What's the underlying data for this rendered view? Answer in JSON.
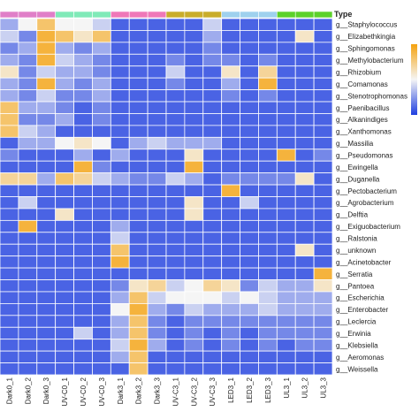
{
  "chart_data": {
    "type": "heatmap",
    "title": "",
    "annotation_label": "Type",
    "columns": [
      "Dark0_1",
      "Dark0_2",
      "Dark0_3",
      "UV-C0_1",
      "UV-C0_2",
      "UV-C0_3",
      "Dark3_1",
      "Dark3_2",
      "Dark3_3",
      "UV-C3_1",
      "UV-C3_2",
      "UV-C3_3",
      "LED3_1",
      "LED3_2",
      "LED3_3",
      "UL3_1",
      "UL3_2",
      "UL3_3"
    ],
    "column_groups": [
      "Dark0",
      "Dark0",
      "Dark0",
      "UV-C0",
      "UV-C0",
      "UV-C0",
      "Dark3",
      "Dark3",
      "Dark3",
      "UV-C3",
      "UV-C3",
      "UV-C3",
      "LED3",
      "LED3",
      "LED3",
      "UL3",
      "UL3",
      "UL3"
    ],
    "group_colors": {
      "Dark0": "#e07fc8",
      "UV-C0": "#80eab8",
      "Dark3": "#ef78b8",
      "UV-C3": "#c9ad2b",
      "LED3": "#9fd1ee",
      "UL3": "#5cd12b"
    },
    "rows": [
      "g__Staphylococcus",
      "g__Elizabethkingia",
      "g__Sphingomonas",
      "g__Methylobacterium",
      "g__Rhizobium",
      "g__Comamonas",
      "g__Stenotrophomonas",
      "g__Paenibacillus",
      "g__Alkanindiges",
      "g__Xanthomonas",
      "g__Massilia",
      "g__Pseudomonas",
      "g__Ewingella",
      "g__Duganella",
      "g__Pectobacterium",
      "g__Agrobacterium",
      "g__Delftia",
      "g__Exiguobacterium",
      "g__Ralstonia",
      "g__unknown",
      "g__Acinetobacter",
      "g__Serratia",
      "g__Pantoea",
      "g__Escherichia",
      "g__Enterobacter",
      "g__Leclercia",
      "g__Erwinia",
      "g__Klebsiella",
      "g__Aeromonas",
      "g__Weissella"
    ],
    "values": [
      [
        0.3,
        0.5,
        0.8,
        0.5,
        0.5,
        0.4,
        0.1,
        0.1,
        0.1,
        0.1,
        0.1,
        0.4,
        0.1,
        0.1,
        0.1,
        0.1,
        0.1,
        0.1
      ],
      [
        0.4,
        0.2,
        0.9,
        0.8,
        0.6,
        0.8,
        0.1,
        0.1,
        0.1,
        0.1,
        0.1,
        0.3,
        0.1,
        0.1,
        0.1,
        0.1,
        0.6,
        0.1
      ],
      [
        0.2,
        0.3,
        0.9,
        0.3,
        0.2,
        0.3,
        0.1,
        0.1,
        0.1,
        0.1,
        0.1,
        0.2,
        0.1,
        0.1,
        0.1,
        0.1,
        0.1,
        0.1
      ],
      [
        0.3,
        0.2,
        0.9,
        0.4,
        0.3,
        0.2,
        0.1,
        0.1,
        0.1,
        0.2,
        0.1,
        0.2,
        0.2,
        0.1,
        0.2,
        0.1,
        0.1,
        0.1
      ],
      [
        0.6,
        0.2,
        0.4,
        0.3,
        0.3,
        0.2,
        0.1,
        0.1,
        0.1,
        0.4,
        0.1,
        0.1,
        0.6,
        0.1,
        0.7,
        0.1,
        0.1,
        0.1
      ],
      [
        0.3,
        0.2,
        0.9,
        0.3,
        0.2,
        0.3,
        0.1,
        0.1,
        0.1,
        0.2,
        0.1,
        0.1,
        0.3,
        0.1,
        0.9,
        0.1,
        0.1,
        0.1
      ],
      [
        0.3,
        0.2,
        0.4,
        0.2,
        0.2,
        0.3,
        0.1,
        0.1,
        0.1,
        0.1,
        0.1,
        0.1,
        0.2,
        0.1,
        0.2,
        0.1,
        0.1,
        0.1
      ],
      [
        0.8,
        0.3,
        0.3,
        0.2,
        0.1,
        0.2,
        0.1,
        0.1,
        0.1,
        0.1,
        0.1,
        0.1,
        0.1,
        0.1,
        0.1,
        0.1,
        0.1,
        0.1
      ],
      [
        0.8,
        0.2,
        0.2,
        0.3,
        0.1,
        0.2,
        0.1,
        0.1,
        0.1,
        0.1,
        0.1,
        0.1,
        0.1,
        0.1,
        0.1,
        0.1,
        0.1,
        0.1
      ],
      [
        0.8,
        0.4,
        0.3,
        0.1,
        0.1,
        0.1,
        0.1,
        0.1,
        0.1,
        0.1,
        0.1,
        0.1,
        0.1,
        0.1,
        0.1,
        0.1,
        0.1,
        0.1
      ],
      [
        0.1,
        0.3,
        0.3,
        0.5,
        0.6,
        0.5,
        0.1,
        0.3,
        0.4,
        0.3,
        0.3,
        0.3,
        0.1,
        0.1,
        0.1,
        0.1,
        0.1,
        0.1
      ],
      [
        0.2,
        0.1,
        0.1,
        0.1,
        0.3,
        0.1,
        0.3,
        0.1,
        0.1,
        0.1,
        0.6,
        0.1,
        0.1,
        0.1,
        0.1,
        0.9,
        0.1,
        0.2
      ],
      [
        0.1,
        0.1,
        0.1,
        0.1,
        0.9,
        0.2,
        0.1,
        0.1,
        0.1,
        0.1,
        0.9,
        0.1,
        0.1,
        0.1,
        0.1,
        0.1,
        0.1,
        0.1
      ],
      [
        0.7,
        0.7,
        0.3,
        0.8,
        0.7,
        0.4,
        0.3,
        0.2,
        0.2,
        0.4,
        0.3,
        0.1,
        0.2,
        0.2,
        0.2,
        0.2,
        0.6,
        0.1
      ],
      [
        0.1,
        0.1,
        0.1,
        0.1,
        0.1,
        0.1,
        0.1,
        0.1,
        0.1,
        0.1,
        0.1,
        0.1,
        0.9,
        0.1,
        0.1,
        0.1,
        0.1,
        0.1
      ],
      [
        0.1,
        0.4,
        0.1,
        0.1,
        0.1,
        0.1,
        0.1,
        0.1,
        0.1,
        0.1,
        0.6,
        0.1,
        0.1,
        0.4,
        0.1,
        0.1,
        0.1,
        0.1
      ],
      [
        0.1,
        0.1,
        0.1,
        0.6,
        0.1,
        0.1,
        0.1,
        0.1,
        0.1,
        0.1,
        0.6,
        0.1,
        0.1,
        0.1,
        0.1,
        0.1,
        0.1,
        0.1
      ],
      [
        0.1,
        0.9,
        0.1,
        0.1,
        0.1,
        0.1,
        0.3,
        0.1,
        0.1,
        0.1,
        0.1,
        0.1,
        0.1,
        0.1,
        0.1,
        0.1,
        0.1,
        0.1
      ],
      [
        0.1,
        0.1,
        0.1,
        0.1,
        0.1,
        0.1,
        0.4,
        0.1,
        0.1,
        0.1,
        0.1,
        0.1,
        0.1,
        0.1,
        0.1,
        0.1,
        0.1,
        0.1
      ],
      [
        0.1,
        0.1,
        0.1,
        0.1,
        0.1,
        0.1,
        0.8,
        0.1,
        0.1,
        0.1,
        0.1,
        0.1,
        0.1,
        0.1,
        0.1,
        0.1,
        0.6,
        0.1
      ],
      [
        0.1,
        0.1,
        0.1,
        0.1,
        0.1,
        0.1,
        0.9,
        0.1,
        0.1,
        0.1,
        0.1,
        0.1,
        0.1,
        0.1,
        0.1,
        0.1,
        0.1,
        0.1
      ],
      [
        0.1,
        0.1,
        0.1,
        0.1,
        0.1,
        0.1,
        0.1,
        0.1,
        0.1,
        0.1,
        0.1,
        0.1,
        0.1,
        0.1,
        0.1,
        0.1,
        0.1,
        0.9
      ],
      [
        0.1,
        0.1,
        0.1,
        0.1,
        0.1,
        0.1,
        0.2,
        0.6,
        0.7,
        0.4,
        0.5,
        0.7,
        0.6,
        0.2,
        0.4,
        0.3,
        0.3,
        0.6
      ],
      [
        0.1,
        0.1,
        0.1,
        0.1,
        0.1,
        0.1,
        0.3,
        0.8,
        0.4,
        0.5,
        0.5,
        0.5,
        0.4,
        0.5,
        0.4,
        0.3,
        0.3,
        0.3
      ],
      [
        0.1,
        0.1,
        0.1,
        0.1,
        0.1,
        0.1,
        0.5,
        0.9,
        0.3,
        0.2,
        0.4,
        0.3,
        0.3,
        0.3,
        0.4,
        0.3,
        0.3,
        0.3
      ],
      [
        0.1,
        0.1,
        0.1,
        0.1,
        0.1,
        0.1,
        0.3,
        0.8,
        0.2,
        0.1,
        0.2,
        0.2,
        0.2,
        0.2,
        0.2,
        0.2,
        0.2,
        0.2
      ],
      [
        0.1,
        0.1,
        0.1,
        0.1,
        0.4,
        0.1,
        0.3,
        0.8,
        0.2,
        0.1,
        0.2,
        0.1,
        0.2,
        0.1,
        0.2,
        0.2,
        0.2,
        0.2
      ],
      [
        0.1,
        0.1,
        0.1,
        0.1,
        0.1,
        0.1,
        0.4,
        0.9,
        0.3,
        0.1,
        0.2,
        0.1,
        0.2,
        0.1,
        0.2,
        0.1,
        0.2,
        0.2
      ],
      [
        0.1,
        0.1,
        0.1,
        0.1,
        0.1,
        0.1,
        0.3,
        0.8,
        0.1,
        0.1,
        0.1,
        0.1,
        0.1,
        0.1,
        0.1,
        0.1,
        0.1,
        0.1
      ],
      [
        0.1,
        0.1,
        0.1,
        0.1,
        0.1,
        0.1,
        0.1,
        0.8,
        0.1,
        0.1,
        0.1,
        0.1,
        0.1,
        0.1,
        0.1,
        0.1,
        0.1,
        0.1
      ]
    ],
    "value_scale_note": "0 = low (blue), 0.5 = mid (white), 1 = high (orange); relative abundance",
    "color_scale": {
      "low": "#1f3fe0",
      "mid": "#f5f5f5",
      "high": "#f5a30f"
    },
    "legend_position": "top-right"
  }
}
